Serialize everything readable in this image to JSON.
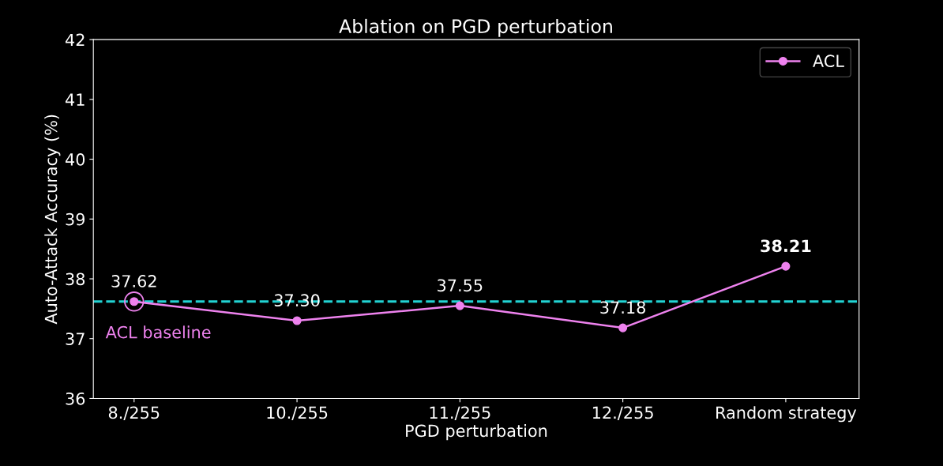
{
  "chart_data": {
    "type": "line",
    "title": "Ablation on PGD perturbation",
    "xlabel": "PGD perturbation",
    "ylabel": "Auto-Attack Accuracy (%)",
    "categories": [
      "8./255",
      "10./255",
      "11./255",
      "12./255",
      "Random strategy"
    ],
    "series": [
      {
        "name": "ACL",
        "color": "#ee82ee",
        "values": [
          37.62,
          37.3,
          37.55,
          37.18,
          38.21
        ],
        "value_labels": [
          "37.62",
          "37.30",
          "37.55",
          "37.18",
          "38.21"
        ]
      }
    ],
    "ylim": [
      36,
      42
    ],
    "yticks": [
      36,
      37,
      38,
      39,
      40,
      41,
      42
    ],
    "ref_lines": [
      {
        "axis": "y",
        "value": 37.62,
        "color": "#22d3d3",
        "line_style": "dashed"
      }
    ],
    "annotations": [
      {
        "text": "ACL baseline",
        "x": "8./255",
        "y": 37.62
      }
    ],
    "marker": "circle",
    "line_style": "solid",
    "legend": "top right",
    "grid": false
  }
}
